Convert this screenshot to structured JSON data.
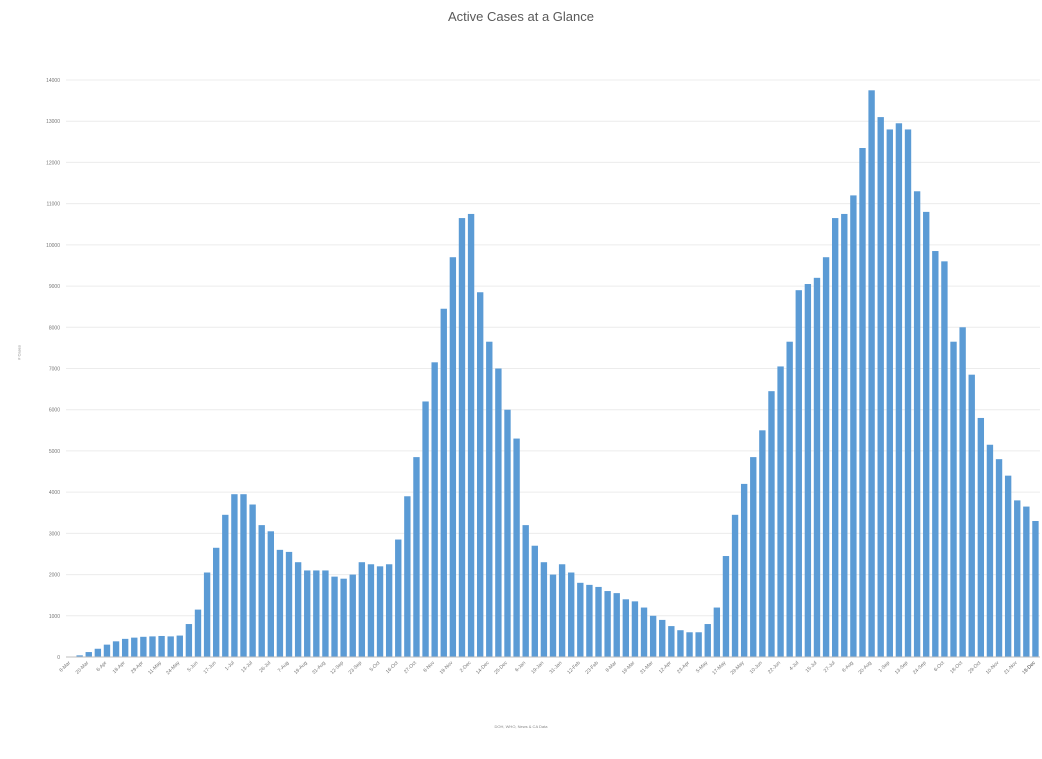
{
  "chart_data": {
    "type": "bar",
    "title": "Active Cases at a Glance",
    "ylabel": "# Cases",
    "xlabel": "DOH, WHO, News & CA Data",
    "ylim": [
      0,
      14000
    ],
    "yticks": [
      0,
      1000,
      2000,
      3000,
      4000,
      5000,
      6000,
      7000,
      8000,
      9000,
      10000,
      11000,
      12000,
      13000,
      14000
    ],
    "grid": true,
    "color": "#5b9bd5",
    "x_tick_labels": [
      "8-Mar",
      "20-Mar",
      "6-Apr",
      "18-Apr",
      "29-Apr",
      "11-May",
      "24-May",
      "5-Jun",
      "17-Jun",
      "1-Jul",
      "13-Jul",
      "26-Jul",
      "7-Aug",
      "19-Aug",
      "31-Aug",
      "12-Sep",
      "23-Sep",
      "5-Oct",
      "16-Oct",
      "27-Oct",
      "8-Nov",
      "19-Nov",
      "2-Dec",
      "14-Dec",
      "25-Dec",
      "6-Jan",
      "19-Jan",
      "31-Jan",
      "12-Feb",
      "23-Feb",
      "8-Mar",
      "19-Mar",
      "31-Mar",
      "12-Apr",
      "23-Apr",
      "5-May",
      "17-May",
      "29-May",
      "10-Jun",
      "22-Jun",
      "4-Jul",
      "15-Jul",
      "27-Jul",
      "8-Aug",
      "20-Aug",
      "1-Sep",
      "13-Sep",
      "24-Sep",
      "6-Oct",
      "18-Oct",
      "29-Oct",
      "10-Nov",
      "21-Nov",
      "3-Dec",
      "15-Dec"
    ],
    "values": [
      10,
      40,
      120,
      200,
      300,
      380,
      440,
      470,
      490,
      500,
      510,
      500,
      520,
      800,
      1150,
      2050,
      2650,
      3450,
      3950,
      3950,
      3700,
      3200,
      3050,
      2600,
      2550,
      2300,
      2100,
      2100,
      2100,
      1950,
      1900,
      2000,
      2300,
      2250,
      2200,
      2250,
      2850,
      3900,
      4850,
      6200,
      7150,
      8450,
      9700,
      10650,
      10750,
      8850,
      7650,
      7000,
      6000,
      5300,
      3200,
      2700,
      2300,
      2000,
      2250,
      2050,
      1800,
      1750,
      1700,
      1600,
      1550,
      1400,
      1350,
      1200,
      1000,
      900,
      750,
      650,
      600,
      600,
      800,
      1200,
      2450,
      3450,
      4200,
      4850,
      5500,
      6450,
      7050,
      7650,
      8900,
      9050,
      9200,
      9700,
      10650,
      10750,
      11200,
      12350,
      13750,
      13100,
      12800,
      12950,
      12800,
      11300,
      10800,
      9850,
      9600,
      7650,
      8000,
      6850,
      5800,
      5150,
      4800,
      4400,
      3800,
      3650,
      3300
    ]
  }
}
